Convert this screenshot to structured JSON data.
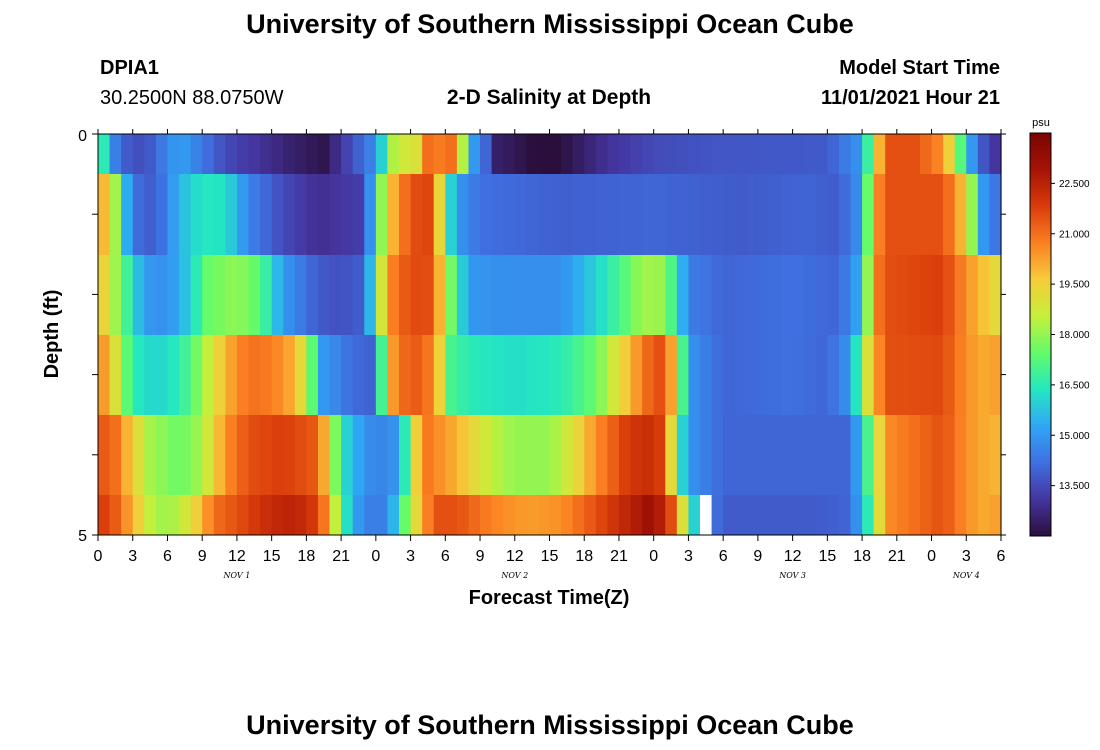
{
  "header": {
    "title": "University of Southern Mississippi Ocean Cube",
    "station_id": "DPIA1",
    "station_coords": "30.2500N  88.0750W",
    "chart_title": "2-D Salinity at Depth",
    "model_start_label": "Model Start Time",
    "model_start_value": "11/01/2021 Hour 21"
  },
  "footer": {
    "title": "University of Southern Mississippi Ocean Cube"
  },
  "colors": {
    "palette": [
      "#2a0f3c",
      "#4535a0",
      "#3f6fe0",
      "#2fa7f5",
      "#24e7c1",
      "#62fb6a",
      "#c6ef3a",
      "#f6cc3a",
      "#fb8022",
      "#d93c0a",
      "#a51305",
      "#7a0403"
    ]
  },
  "chart_data": {
    "type": "heatmap",
    "xlabel": "Forecast Time(Z)",
    "ylabel": "Depth (ft)",
    "x_tick_labels": [
      "0",
      "3",
      "6",
      "9",
      "12",
      "15",
      "18",
      "21",
      "0",
      "3",
      "6",
      "9",
      "12",
      "15",
      "18",
      "21",
      "0",
      "3",
      "6",
      "9",
      "12",
      "15",
      "18",
      "21",
      "0",
      "3",
      "6"
    ],
    "day_labels": [
      "NOV 1",
      "NOV 2",
      "NOV 3",
      "NOV 4"
    ],
    "y_tick_labels": [
      "0",
      "5"
    ],
    "ylim": [
      0,
      5
    ],
    "colorbar": {
      "unit": "psu",
      "min": 12.0,
      "max": 24.0,
      "ticks": [
        "22.500",
        "21.000",
        "19.500",
        "18.000",
        "16.500",
        "15.000",
        "13.500"
      ]
    },
    "depth_layers": [
      "0-0.5 ft",
      "0.5-1.5 ft",
      "1.5-2.5 ft",
      "2.5-3.5 ft",
      "3.5-4.5 ft",
      "4.5-5 ft"
    ],
    "salinity_keyframes": [
      [
        [
          0,
          20
        ],
        [
          0.5,
          16.5
        ],
        [
          1.5,
          14.5
        ],
        [
          2.5,
          13.8
        ],
        [
          4,
          13.5
        ],
        [
          7,
          15.2
        ],
        [
          11,
          13.5
        ],
        [
          17,
          12.5
        ],
        [
          19.5,
          12.2
        ],
        [
          24,
          14.8
        ],
        [
          26,
          19.5
        ],
        [
          27,
          18
        ],
        [
          28.5,
          21
        ],
        [
          29.5,
          20.8
        ],
        [
          30,
          22
        ],
        [
          31,
          20
        ],
        [
          32.5,
          15
        ],
        [
          33.5,
          14
        ],
        [
          34.5,
          12.5
        ],
        [
          39,
          11.8
        ],
        [
          44,
          13
        ],
        [
          48,
          13.5
        ],
        [
          53,
          13.7
        ],
        [
          63,
          13.8
        ],
        [
          66,
          15
        ],
        [
          67,
          18.5
        ],
        [
          68,
          21.5
        ],
        [
          70.5,
          21.5
        ],
        [
          73,
          20.5
        ],
        [
          74,
          18.5
        ],
        [
          75,
          16
        ],
        [
          76,
          14
        ],
        [
          78,
          12.8
        ]
      ],
      [
        [
          0,
          20
        ],
        [
          1,
          19.8
        ],
        [
          2,
          16.5
        ],
        [
          3,
          14.2
        ],
        [
          5,
          13.8
        ],
        [
          7,
          15.5
        ],
        [
          9,
          16.4
        ],
        [
          11,
          16.3
        ],
        [
          13,
          14.6
        ],
        [
          16,
          13.5
        ],
        [
          19,
          12.9
        ],
        [
          21,
          13.1
        ],
        [
          23,
          13.3
        ],
        [
          25,
          19.5
        ],
        [
          27,
          21.5
        ],
        [
          29,
          21.7
        ],
        [
          30,
          17
        ],
        [
          31,
          15
        ],
        [
          33,
          14.2
        ],
        [
          40,
          13.9
        ],
        [
          48,
          14
        ],
        [
          56,
          13.8
        ],
        [
          61,
          14
        ],
        [
          64,
          13.8
        ],
        [
          66,
          15
        ],
        [
          67,
          20
        ],
        [
          68,
          21.5
        ],
        [
          73,
          21.5
        ],
        [
          75,
          19.5
        ],
        [
          76.5,
          15
        ],
        [
          78,
          14
        ]
      ],
      [
        [
          0,
          20
        ],
        [
          2,
          17.5
        ],
        [
          4,
          15
        ],
        [
          6,
          14.8
        ],
        [
          8,
          16
        ],
        [
          9.5,
          17.5
        ],
        [
          12,
          18
        ],
        [
          14,
          17.3
        ],
        [
          16,
          15
        ],
        [
          19,
          13.8
        ],
        [
          21,
          13.6
        ],
        [
          23,
          13.9
        ],
        [
          25,
          20.5
        ],
        [
          27,
          21.6
        ],
        [
          29,
          21.5
        ],
        [
          30,
          18.5
        ],
        [
          32,
          15
        ],
        [
          35,
          14.8
        ],
        [
          40,
          14.8
        ],
        [
          43,
          16
        ],
        [
          46,
          17.5
        ],
        [
          47,
          18.2
        ],
        [
          49,
          18
        ],
        [
          51,
          14.5
        ],
        [
          54,
          14
        ],
        [
          60,
          14.2
        ],
        [
          64,
          14
        ],
        [
          66,
          15.5
        ],
        [
          67,
          20.5
        ],
        [
          68,
          21.5
        ],
        [
          73,
          21.8
        ],
        [
          75,
          20.5
        ],
        [
          77,
          19.5
        ],
        [
          78,
          19
        ]
      ],
      [
        [
          0,
          21
        ],
        [
          1.5,
          19
        ],
        [
          3,
          16.5
        ],
        [
          5,
          16
        ],
        [
          7,
          16.5
        ],
        [
          9,
          18
        ],
        [
          11,
          20
        ],
        [
          13,
          21
        ],
        [
          15,
          20.8
        ],
        [
          17,
          20
        ],
        [
          18,
          18.5
        ],
        [
          19.5,
          15
        ],
        [
          22,
          14.1
        ],
        [
          24,
          13.9
        ],
        [
          25,
          20
        ],
        [
          27,
          21.5
        ],
        [
          29,
          20.7
        ],
        [
          30.5,
          17
        ],
        [
          32,
          16.5
        ],
        [
          36,
          16.2
        ],
        [
          40,
          16.5
        ],
        [
          43,
          17.5
        ],
        [
          46,
          20
        ],
        [
          48,
          21.5
        ],
        [
          49,
          21.5
        ],
        [
          50,
          19
        ],
        [
          51,
          15
        ],
        [
          54,
          14
        ],
        [
          60,
          14.2
        ],
        [
          63,
          14
        ],
        [
          65,
          15
        ],
        [
          66.5,
          19
        ],
        [
          68,
          21.5
        ],
        [
          73,
          21.6
        ],
        [
          75,
          20.5
        ],
        [
          77,
          20
        ],
        [
          78,
          20.5
        ]
      ],
      [
        [
          0,
          21.5
        ],
        [
          1.5,
          21
        ],
        [
          3,
          19.5
        ],
        [
          4.5,
          18.2
        ],
        [
          7,
          17.5
        ],
        [
          9,
          18.2
        ],
        [
          11,
          20.5
        ],
        [
          13,
          21.5
        ],
        [
          16,
          21.8
        ],
        [
          19,
          21.3
        ],
        [
          20,
          19
        ],
        [
          21,
          16.5
        ],
        [
          22,
          15.5
        ],
        [
          24,
          14.5
        ],
        [
          26,
          15
        ],
        [
          28,
          21
        ],
        [
          31,
          20
        ],
        [
          34,
          18.5
        ],
        [
          36,
          18
        ],
        [
          39,
          18
        ],
        [
          41,
          19
        ],
        [
          43,
          20.5
        ],
        [
          46,
          22
        ],
        [
          48,
          22.2
        ],
        [
          49,
          21.5
        ],
        [
          50,
          17
        ],
        [
          51,
          15
        ],
        [
          54,
          14
        ],
        [
          60,
          14
        ],
        [
          65,
          14
        ],
        [
          66.5,
          17
        ],
        [
          68,
          20.5
        ],
        [
          73,
          21.5
        ],
        [
          75,
          20.5
        ],
        [
          77,
          20
        ],
        [
          78,
          20
        ]
      ],
      [
        [
          0,
          22
        ],
        [
          1.5,
          21.3
        ],
        [
          3,
          20
        ],
        [
          4.5,
          18.5
        ],
        [
          6,
          18
        ],
        [
          8,
          19
        ],
        [
          10,
          21
        ],
        [
          12,
          21.5
        ],
        [
          15,
          22.3
        ],
        [
          17,
          22.5
        ],
        [
          19,
          21.8
        ],
        [
          20,
          20
        ],
        [
          21,
          17
        ],
        [
          22,
          15.5
        ],
        [
          23,
          14.5
        ],
        [
          25,
          14.5
        ],
        [
          27,
          18.5
        ],
        [
          29,
          21.5
        ],
        [
          31,
          21.5
        ],
        [
          34,
          20.7
        ],
        [
          37,
          20.3
        ],
        [
          40,
          20.5
        ],
        [
          43,
          21.5
        ],
        [
          46,
          22.5
        ],
        [
          48,
          23.2
        ],
        [
          50,
          21
        ],
        [
          51,
          17
        ],
        [
          52,
          15
        ],
        [
          54,
          13.8
        ],
        [
          62,
          13.8
        ],
        [
          65,
          14
        ],
        [
          66.5,
          16.5
        ],
        [
          68,
          20.5
        ],
        [
          73,
          21.5
        ],
        [
          75,
          20.5
        ],
        [
          77,
          20
        ],
        [
          78,
          20.5
        ]
      ]
    ],
    "missing_cells": [
      {
        "layer": 5,
        "hour": 52
      }
    ]
  }
}
